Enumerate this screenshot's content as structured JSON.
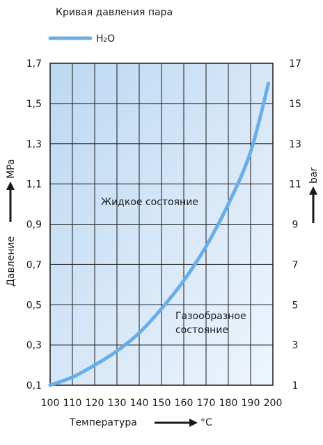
{
  "chart_data": {
    "type": "line",
    "title": "Кривая давления пара",
    "legend": {
      "placement": "top-left",
      "entries": [
        "H₂O"
      ]
    },
    "xlabel": "Температура",
    "xunit": "°C",
    "ylabel": "Давление",
    "yunit": "MPa",
    "y2unit": "bar",
    "xlim": [
      100,
      200
    ],
    "ylim": [
      0.1,
      1.7
    ],
    "y2lim": [
      1,
      17
    ],
    "x_ticks": [
      100,
      110,
      120,
      130,
      140,
      150,
      160,
      170,
      180,
      190,
      200
    ],
    "x_tick_labels": [
      "100",
      "110",
      "120",
      "130",
      "140",
      "150",
      "160",
      "170",
      "180",
      "190",
      "200"
    ],
    "y_ticks": [
      0.1,
      0.3,
      0.5,
      0.7,
      0.9,
      1.1,
      1.3,
      1.5,
      1.7
    ],
    "y_tick_labels": [
      "0,1",
      "0,3",
      "0,5",
      "0,7",
      "0,9",
      "1,1",
      "1,3",
      "1,5",
      "1,7"
    ],
    "y2_ticks": [
      1,
      3,
      5,
      7,
      9,
      11,
      13,
      15,
      17
    ],
    "y2_tick_labels": [
      "1",
      "3",
      "5",
      "7",
      "9",
      "11",
      "13",
      "15",
      "17"
    ],
    "grid": true,
    "series": [
      {
        "name": "H₂O",
        "color": "#6aaee6",
        "x": [
          100,
          110,
          120,
          130,
          140,
          150,
          160,
          170,
          180,
          190,
          198
        ],
        "y": [
          0.1,
          0.14,
          0.2,
          0.27,
          0.36,
          0.48,
          0.62,
          0.79,
          1.0,
          1.26,
          1.6
        ]
      }
    ],
    "annotations": [
      {
        "text": "Жидкое состояние"
      },
      {
        "text": "Газообразное\nсостояние"
      }
    ]
  }
}
